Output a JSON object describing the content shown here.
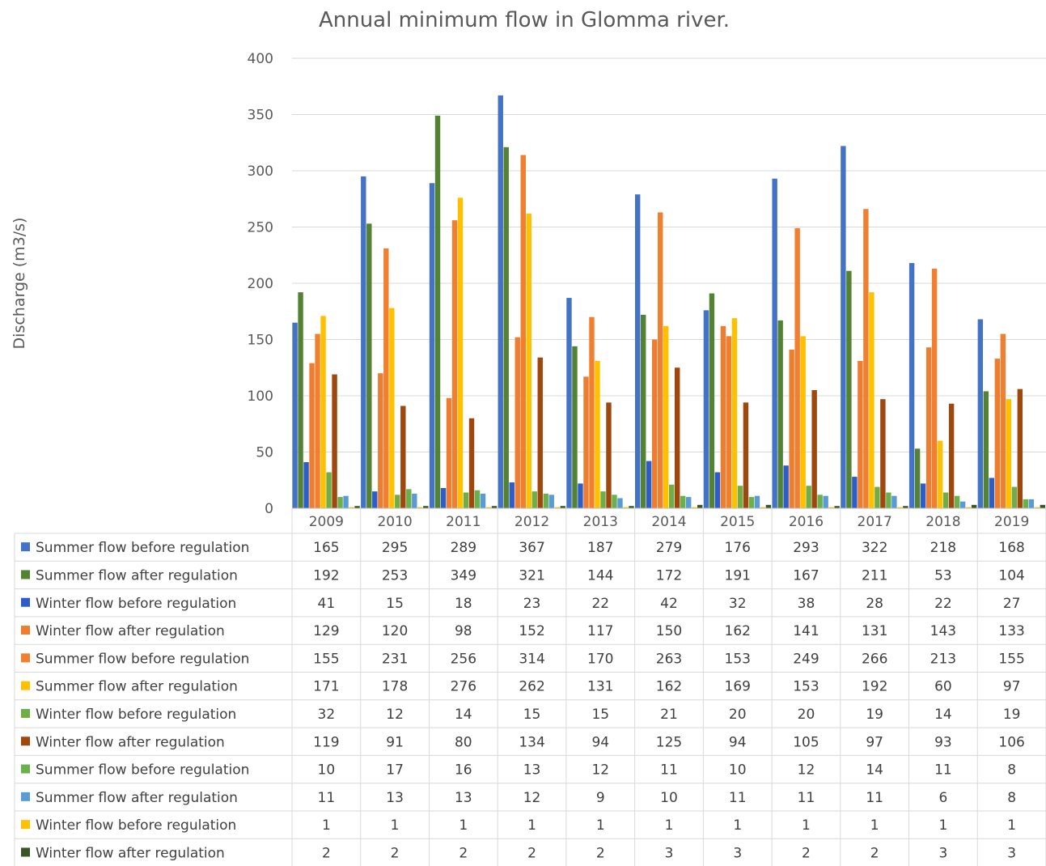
{
  "chart_data": {
    "type": "bar",
    "title": "Annual minimum flow in Glomma river.",
    "ylabel": "Discharge (m3/s)",
    "xlabel": "",
    "ylim": [
      0,
      400
    ],
    "yticks": [
      0,
      50,
      100,
      150,
      200,
      250,
      300,
      350,
      400
    ],
    "grid": true,
    "legend_placement": "data-table-bottom",
    "categories": [
      "2009",
      "2010",
      "2011",
      "2012",
      "2013",
      "2014",
      "2015",
      "2016",
      "2017",
      "2018",
      "2019"
    ],
    "series": [
      {
        "name": "Summer flow before regulation",
        "color": "#4472C4",
        "values": [
          165,
          295,
          289,
          367,
          187,
          279,
          176,
          293,
          322,
          218,
          168
        ]
      },
      {
        "name": "Summer flow after regulation",
        "color": "#548235",
        "values": [
          192,
          253,
          349,
          321,
          144,
          172,
          191,
          167,
          211,
          53,
          104
        ]
      },
      {
        "name": "Winter flow before regulation",
        "color": "#2F5DC7",
        "values": [
          41,
          15,
          18,
          23,
          22,
          42,
          32,
          38,
          28,
          22,
          27
        ]
      },
      {
        "name": "Winter flow after regulation",
        "color": "#ED7D31",
        "values": [
          129,
          120,
          98,
          152,
          117,
          150,
          162,
          141,
          131,
          143,
          133
        ]
      },
      {
        "name": "Summer flow before regulation",
        "color": "#F08030",
        "values": [
          155,
          231,
          256,
          314,
          170,
          263,
          153,
          249,
          266,
          213,
          155
        ]
      },
      {
        "name": "Summer flow after regulation",
        "color": "#FFC000",
        "values": [
          171,
          178,
          276,
          262,
          131,
          162,
          169,
          153,
          192,
          60,
          97
        ]
      },
      {
        "name": "Winter flow before regulation",
        "color": "#70AD47",
        "values": [
          32,
          12,
          14,
          15,
          15,
          21,
          20,
          20,
          19,
          14,
          19
        ]
      },
      {
        "name": "Winter flow after regulation",
        "color": "#9E480E",
        "values": [
          119,
          91,
          80,
          134,
          94,
          125,
          94,
          105,
          97,
          93,
          106
        ]
      },
      {
        "name": "Summer flow before regulation",
        "color": "#6AB04C",
        "values": [
          10,
          17,
          16,
          13,
          12,
          11,
          10,
          12,
          14,
          11,
          8
        ]
      },
      {
        "name": "Summer flow after regulation",
        "color": "#5B9BD5",
        "values": [
          11,
          13,
          13,
          12,
          9,
          10,
          11,
          11,
          11,
          6,
          8
        ]
      },
      {
        "name": "Winter flow before regulation",
        "color": "#FFC000",
        "values": [
          1,
          1,
          1,
          1,
          1,
          1,
          1,
          1,
          1,
          1,
          1
        ]
      },
      {
        "name": "Winter flow after regulation",
        "color": "#375623",
        "values": [
          2,
          2,
          2,
          2,
          2,
          3,
          3,
          2,
          2,
          3,
          3
        ]
      }
    ]
  }
}
